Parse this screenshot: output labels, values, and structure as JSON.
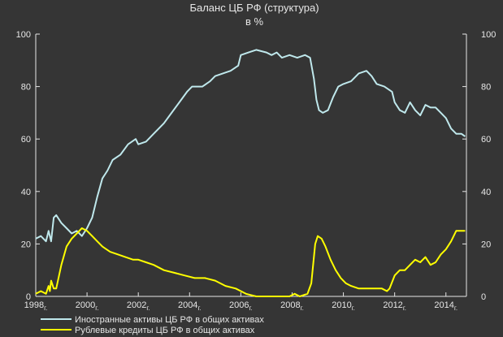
{
  "chart_data": {
    "type": "line",
    "title": "Баланс ЦБ РФ (структура)",
    "subtitle": "в %",
    "xlim": [
      1998.0,
      2014.8
    ],
    "ylim": [
      0,
      100
    ],
    "y_ticks": [
      0,
      20,
      40,
      60,
      80,
      100
    ],
    "y_ticks_right": [
      0,
      20,
      40,
      60,
      80,
      100
    ],
    "x_ticks": [
      {
        "year": 1998,
        "label": "1998",
        "suffix": "г."
      },
      {
        "year": 2000,
        "label": "2000",
        "suffix": "г."
      },
      {
        "year": 2002,
        "label": "2002",
        "suffix": "г."
      },
      {
        "year": 2004,
        "label": "2004",
        "suffix": "г."
      },
      {
        "year": 2006,
        "label": "2006",
        "suffix": "г."
      },
      {
        "year": 2008,
        "label": "2008",
        "suffix": "г."
      },
      {
        "year": 2010,
        "label": "2010",
        "suffix": "г."
      },
      {
        "year": 2012,
        "label": "2012",
        "suffix": "г."
      },
      {
        "year": 2014,
        "label": "2014",
        "suffix": "г."
      }
    ],
    "grid": false,
    "legend_position": "bottom-left",
    "colors": {
      "background": "#353535",
      "axis": "#e6e6e6",
      "series1": "#bfe8ec",
      "series2": "#ffff00"
    },
    "series": [
      {
        "name": "Иностранные активы ЦБ РФ в общих активах",
        "color": "#bfe8ec",
        "points": [
          [
            1998.0,
            22
          ],
          [
            1998.2,
            23
          ],
          [
            1998.4,
            21
          ],
          [
            1998.5,
            25
          ],
          [
            1998.6,
            21
          ],
          [
            1998.7,
            30
          ],
          [
            1998.8,
            31
          ],
          [
            1999.0,
            28
          ],
          [
            1999.2,
            26
          ],
          [
            1999.4,
            24
          ],
          [
            1999.6,
            25
          ],
          [
            1999.8,
            23
          ],
          [
            2000.0,
            26
          ],
          [
            2000.2,
            30
          ],
          [
            2000.4,
            38
          ],
          [
            2000.6,
            45
          ],
          [
            2000.8,
            48
          ],
          [
            2001.0,
            52
          ],
          [
            2001.3,
            54
          ],
          [
            2001.6,
            58
          ],
          [
            2001.9,
            60
          ],
          [
            2002.0,
            58
          ],
          [
            2002.3,
            59
          ],
          [
            2002.6,
            62
          ],
          [
            2003.0,
            66
          ],
          [
            2003.3,
            70
          ],
          [
            2003.6,
            74
          ],
          [
            2003.9,
            78
          ],
          [
            2004.1,
            80
          ],
          [
            2004.5,
            80
          ],
          [
            2004.8,
            82
          ],
          [
            2005.0,
            84
          ],
          [
            2005.3,
            85
          ],
          [
            2005.6,
            86
          ],
          [
            2005.9,
            88
          ],
          [
            2006.0,
            92
          ],
          [
            2006.3,
            93
          ],
          [
            2006.6,
            94
          ],
          [
            2007.0,
            93
          ],
          [
            2007.2,
            92
          ],
          [
            2007.4,
            93
          ],
          [
            2007.6,
            91
          ],
          [
            2007.9,
            92
          ],
          [
            2008.2,
            91
          ],
          [
            2008.5,
            92
          ],
          [
            2008.7,
            91
          ],
          [
            2008.85,
            83
          ],
          [
            2008.95,
            75
          ],
          [
            2009.05,
            71
          ],
          [
            2009.2,
            70
          ],
          [
            2009.4,
            71
          ],
          [
            2009.6,
            76
          ],
          [
            2009.8,
            80
          ],
          [
            2010.0,
            81
          ],
          [
            2010.3,
            82
          ],
          [
            2010.6,
            85
          ],
          [
            2010.9,
            86
          ],
          [
            2011.1,
            84
          ],
          [
            2011.3,
            81
          ],
          [
            2011.6,
            80
          ],
          [
            2011.9,
            78
          ],
          [
            2012.0,
            74
          ],
          [
            2012.2,
            71
          ],
          [
            2012.4,
            70
          ],
          [
            2012.6,
            74
          ],
          [
            2012.8,
            71
          ],
          [
            2013.0,
            69
          ],
          [
            2013.2,
            73
          ],
          [
            2013.4,
            72
          ],
          [
            2013.6,
            72
          ],
          [
            2013.8,
            70
          ],
          [
            2014.0,
            68
          ],
          [
            2014.2,
            64
          ],
          [
            2014.4,
            62
          ],
          [
            2014.6,
            62
          ],
          [
            2014.75,
            61
          ]
        ]
      },
      {
        "name": "Рублевые кредиты ЦБ РФ в общих активах",
        "color": "#ffff00",
        "points": [
          [
            1998.0,
            1
          ],
          [
            1998.2,
            2
          ],
          [
            1998.4,
            1
          ],
          [
            1998.5,
            4
          ],
          [
            1998.55,
            2
          ],
          [
            1998.6,
            6
          ],
          [
            1998.7,
            3
          ],
          [
            1998.8,
            3
          ],
          [
            1999.0,
            12
          ],
          [
            1999.2,
            19
          ],
          [
            1999.4,
            22
          ],
          [
            1999.6,
            24
          ],
          [
            1999.8,
            26
          ],
          [
            2000.0,
            25
          ],
          [
            2000.2,
            23
          ],
          [
            2000.4,
            21
          ],
          [
            2000.6,
            19
          ],
          [
            2000.9,
            17
          ],
          [
            2001.2,
            16
          ],
          [
            2001.5,
            15
          ],
          [
            2001.8,
            14
          ],
          [
            2002.0,
            14
          ],
          [
            2002.3,
            13
          ],
          [
            2002.6,
            12
          ],
          [
            2003.0,
            10
          ],
          [
            2003.4,
            9
          ],
          [
            2003.8,
            8
          ],
          [
            2004.2,
            7
          ],
          [
            2004.6,
            7
          ],
          [
            2005.0,
            6
          ],
          [
            2005.4,
            4
          ],
          [
            2005.8,
            3
          ],
          [
            2006.0,
            2
          ],
          [
            2006.2,
            1
          ],
          [
            2006.6,
            0
          ],
          [
            2007.0,
            0
          ],
          [
            2007.5,
            0
          ],
          [
            2007.9,
            0
          ],
          [
            2008.1,
            1
          ],
          [
            2008.3,
            0
          ],
          [
            2008.6,
            1
          ],
          [
            2008.75,
            5
          ],
          [
            2008.9,
            20
          ],
          [
            2009.0,
            23
          ],
          [
            2009.15,
            22
          ],
          [
            2009.3,
            19
          ],
          [
            2009.5,
            14
          ],
          [
            2009.7,
            10
          ],
          [
            2009.9,
            7
          ],
          [
            2010.1,
            5
          ],
          [
            2010.3,
            4
          ],
          [
            2010.6,
            3
          ],
          [
            2010.9,
            3
          ],
          [
            2011.2,
            3
          ],
          [
            2011.5,
            3
          ],
          [
            2011.7,
            2
          ],
          [
            2011.8,
            3
          ],
          [
            2012.0,
            8
          ],
          [
            2012.2,
            10
          ],
          [
            2012.4,
            10
          ],
          [
            2012.6,
            12
          ],
          [
            2012.8,
            14
          ],
          [
            2013.0,
            13
          ],
          [
            2013.2,
            15
          ],
          [
            2013.4,
            12
          ],
          [
            2013.6,
            13
          ],
          [
            2013.8,
            16
          ],
          [
            2014.0,
            18
          ],
          [
            2014.2,
            21
          ],
          [
            2014.4,
            25
          ],
          [
            2014.6,
            25
          ],
          [
            2014.75,
            25
          ]
        ]
      }
    ]
  }
}
